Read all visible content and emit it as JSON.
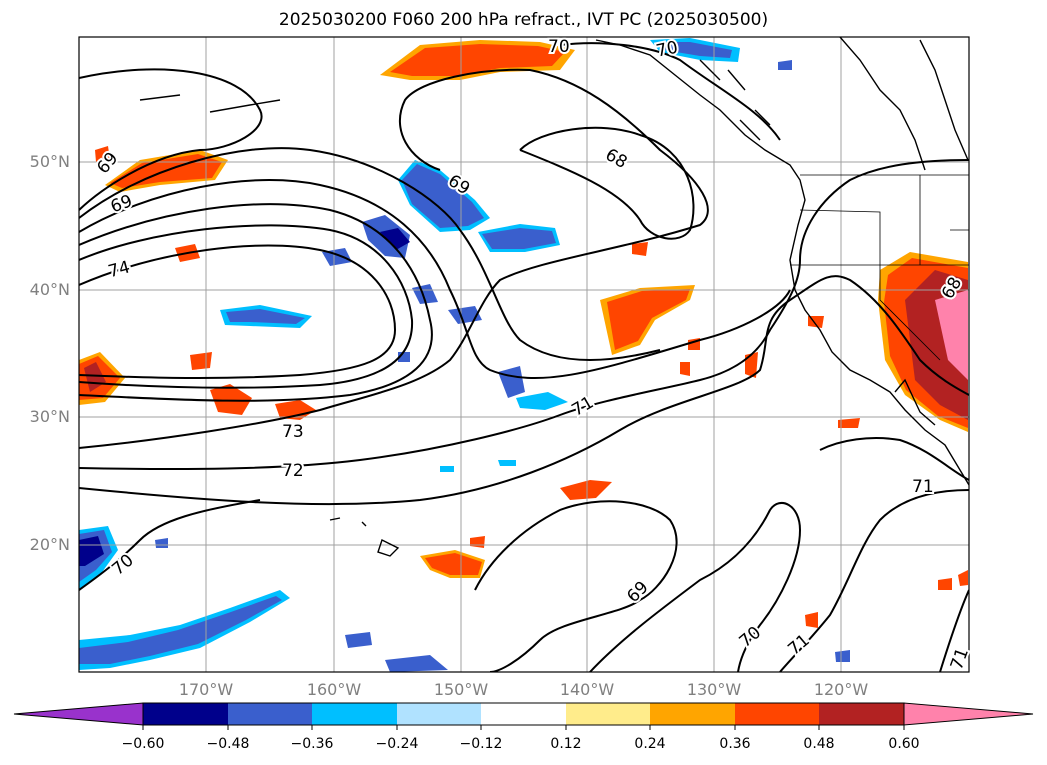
{
  "title": "2025030200 F060 200 hPa refract., IVT PC (2025030500)",
  "lat_labels": [
    "50°N",
    "40°N",
    "30°N",
    "20°N"
  ],
  "lon_labels": [
    "170°W",
    "160°W",
    "150°W",
    "140°W",
    "130°W",
    "120°W"
  ],
  "contour_labels": [
    "70",
    "70",
    "68",
    "69",
    "69",
    "74",
    "69",
    "73",
    "72",
    "71",
    "71",
    "70",
    "69",
    "70",
    "71",
    "71",
    "68"
  ],
  "colorbar": {
    "ticks": [
      "−0.60",
      "−0.48",
      "−0.36",
      "−0.24",
      "−0.12",
      "0.12",
      "0.24",
      "0.36",
      "0.48",
      "0.60"
    ],
    "colors": [
      "#9932cc",
      "#00008b",
      "#3a5fcd",
      "#00bfff",
      "#b0e2ff",
      "#ffffff",
      "#ffec8b",
      "#ffa500",
      "#ff4500",
      "#b22222",
      "#ff82ab"
    ]
  }
}
